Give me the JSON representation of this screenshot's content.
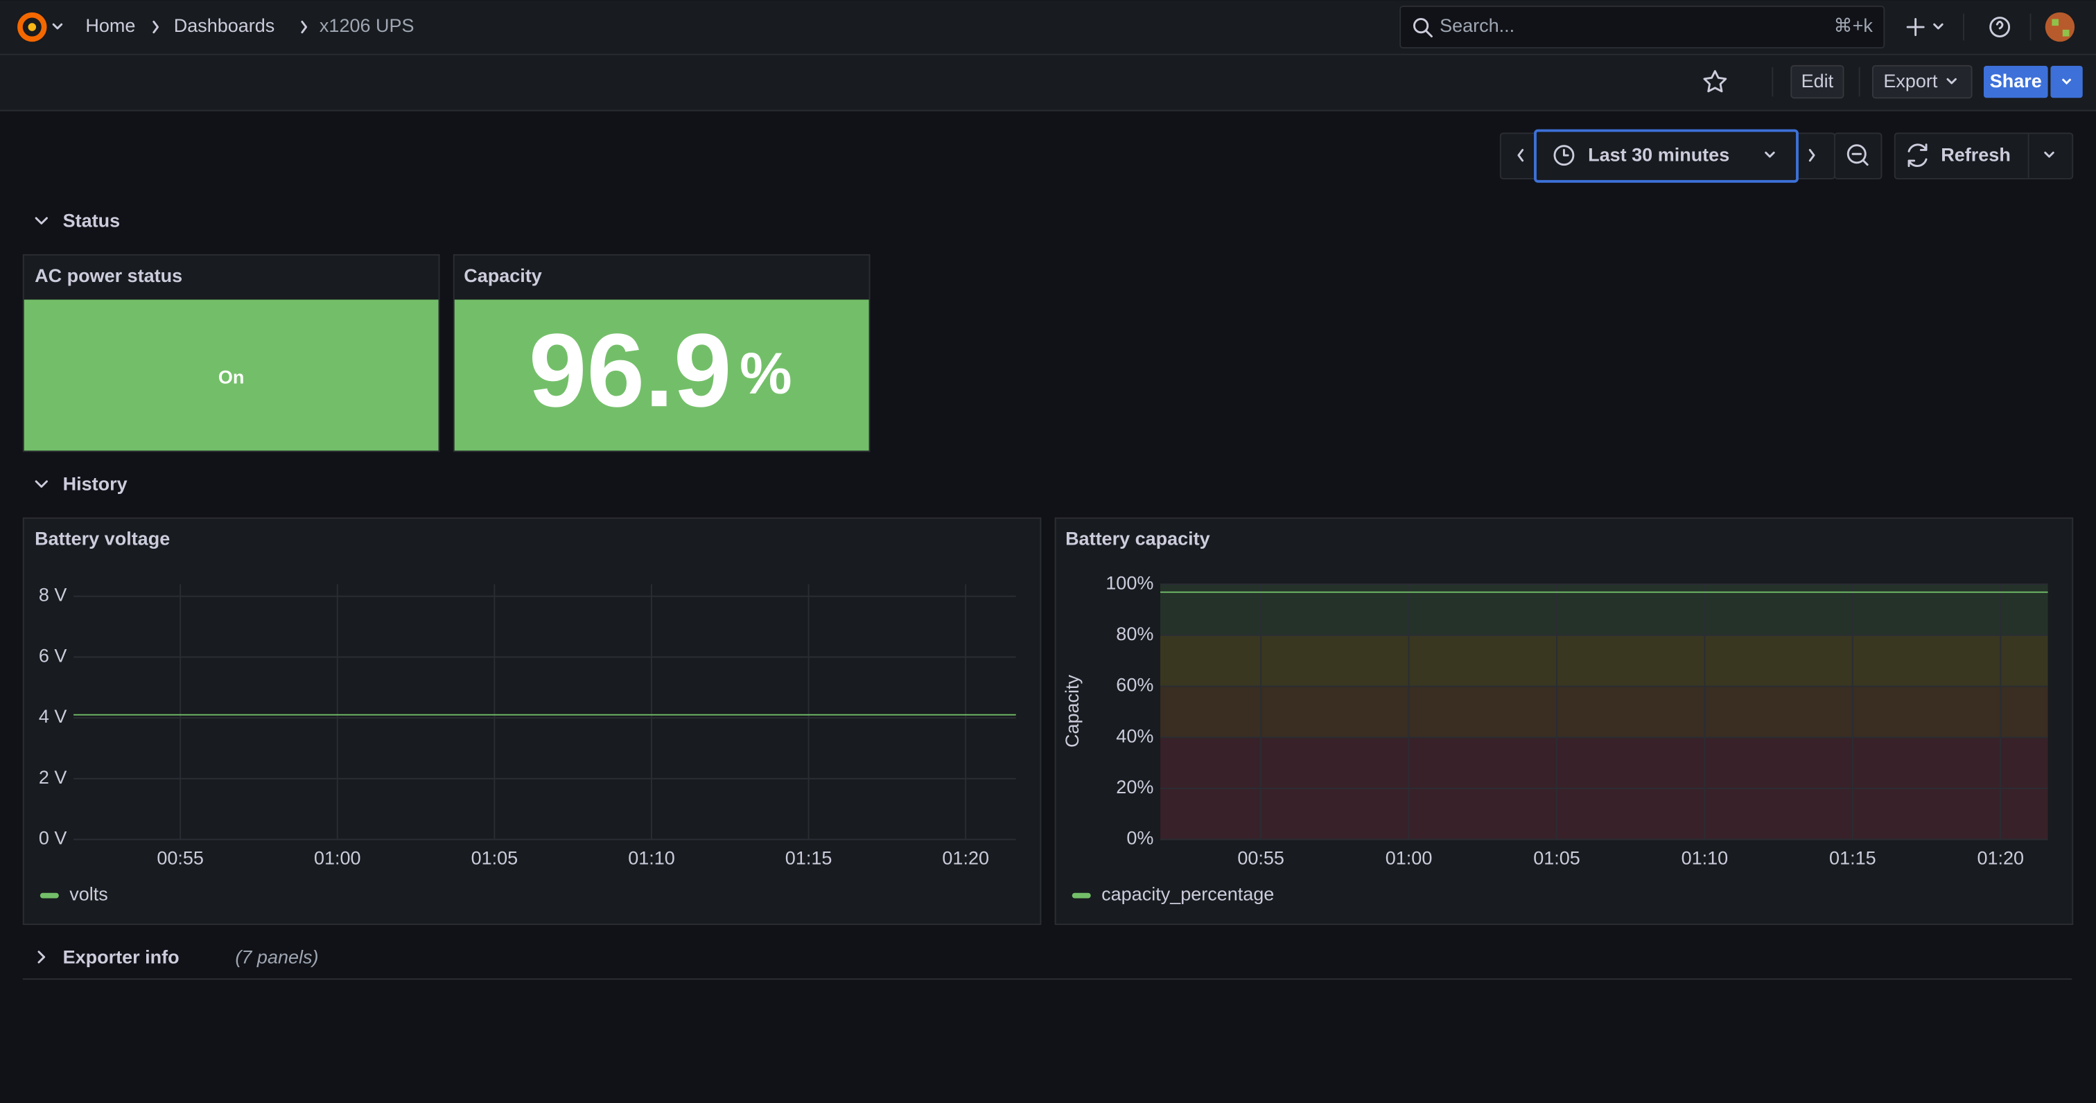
{
  "header": {
    "breadcrumbs": [
      "Home",
      "Dashboards",
      "x1206 UPS"
    ],
    "search": "Search...",
    "shortcut": "⌘+k"
  },
  "toolbar": {
    "edit": "Edit",
    "export": "Export",
    "share": "Share"
  },
  "time_picker": {
    "range": "Last 30 minutes",
    "refresh": "Refresh"
  },
  "rows": [
    {
      "title": "Status"
    },
    {
      "title": "History"
    },
    {
      "title": "Exporter info",
      "note": "(7 panels)"
    }
  ],
  "stat_panels": [
    {
      "title": "AC power status",
      "value": "On",
      "color": "#73bf69"
    },
    {
      "title": "Capacity",
      "value": 96.9,
      "unit": "%",
      "color": "#73bf69"
    }
  ],
  "chart_data": [
    {
      "type": "line",
      "title": "Battery voltage",
      "x": [
        "00:51:36",
        "00:55",
        "01:00",
        "01:05",
        "01:10",
        "01:15",
        "01:20",
        "01:21:36"
      ],
      "series": [
        {
          "name": "volts",
          "color": "#73bf69",
          "values": [
            4.1,
            4.1,
            4.1,
            4.1,
            4.1,
            4.1,
            4.1,
            4.1
          ]
        }
      ],
      "xlim": [
        "00:51:36",
        "01:21:36"
      ],
      "xticks": [
        "00:55",
        "01:00",
        "01:05",
        "01:10",
        "01:15",
        "01:20"
      ],
      "ylim": [
        0,
        8
      ],
      "yticks": [
        {
          "value": 0,
          "label": "0 V"
        },
        {
          "value": 2,
          "label": "2 V"
        },
        {
          "value": 4,
          "label": "4 V"
        },
        {
          "value": 6,
          "label": "6 V"
        },
        {
          "value": 8,
          "label": "8 V"
        }
      ],
      "grid": true,
      "legend": "bottom-left"
    },
    {
      "type": "line",
      "title": "Battery capacity",
      "ylabel": "Capacity",
      "x": [
        "00:51:36",
        "00:55",
        "01:00",
        "01:05",
        "01:10",
        "01:15",
        "01:20",
        "01:21:36"
      ],
      "series": [
        {
          "name": "capacity_percentage",
          "color": "#73bf69",
          "values": [
            96.9,
            96.9,
            96.9,
            96.9,
            96.9,
            96.9,
            96.9,
            96.9
          ]
        }
      ],
      "xlim": [
        "00:51:36",
        "01:21:36"
      ],
      "xticks": [
        "00:55",
        "01:00",
        "01:05",
        "01:10",
        "01:15",
        "01:20"
      ],
      "ylim": [
        0,
        100
      ],
      "yticks": [
        {
          "value": 0,
          "label": "0%"
        },
        {
          "value": 20,
          "label": "20%"
        },
        {
          "value": 40,
          "label": "40%"
        },
        {
          "value": 60,
          "label": "60%"
        },
        {
          "value": 80,
          "label": "80%"
        },
        {
          "value": 100,
          "label": "100%"
        }
      ],
      "thresholds": [
        {
          "value": 0,
          "color": "#f2495c"
        },
        {
          "value": 40,
          "color": "#ff9830"
        },
        {
          "value": 60,
          "color": "#fade2a"
        },
        {
          "value": 80,
          "color": "#73bf69"
        }
      ],
      "grid": true,
      "legend": "bottom-left"
    }
  ]
}
